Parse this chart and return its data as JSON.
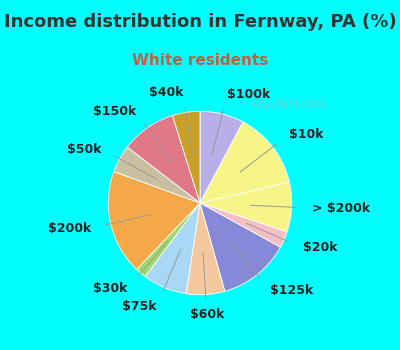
{
  "title": "Income distribution in Fernway, PA (%)",
  "subtitle": "White residents",
  "bg_cyan": "#00FFFF",
  "bg_chart": "#e8f5ee",
  "watermark": "City-Data.com",
  "labels": [
    "$100k",
    "$10k",
    "> $200k",
    "$20k",
    "$125k",
    "$60k",
    "$75k",
    "$30k",
    "$200k",
    "$50k",
    "$150k",
    "$40k"
  ],
  "sizes": [
    8,
    14,
    9,
    3,
    13,
    7,
    8,
    2,
    19,
    5,
    10,
    5
  ],
  "colors": [
    "#b8aee8",
    "#f7f587",
    "#f7f587",
    "#f5bfc8",
    "#8888d8",
    "#f5c8a0",
    "#a8d8f5",
    "#a0d870",
    "#f5a848",
    "#c8c0a0",
    "#e07888",
    "#c8a028"
  ],
  "title_color": "#333333",
  "subtitle_color": "#c06040",
  "label_fontsize": 9,
  "title_fontsize": 13,
  "subtitle_fontsize": 11
}
